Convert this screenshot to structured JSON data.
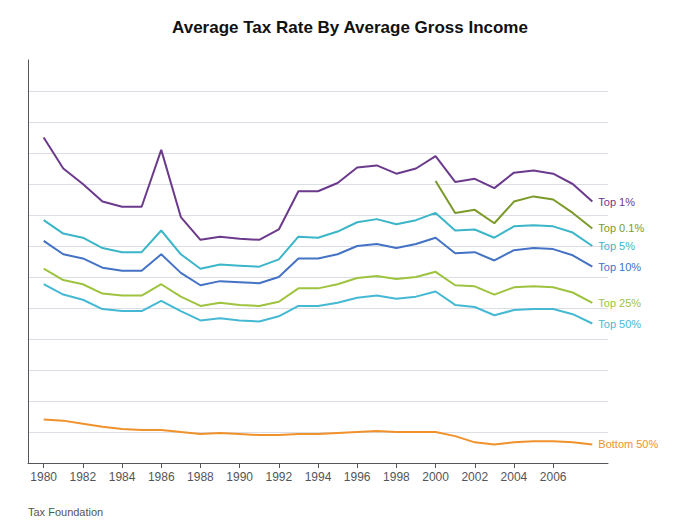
{
  "chart_data": {
    "type": "line",
    "title": "Average Tax Rate By Average Gross Income",
    "annotations": [
      "Tax Foundation"
    ],
    "x": [
      1980,
      1981,
      1982,
      1983,
      1984,
      1985,
      1986,
      1987,
      1988,
      1989,
      1990,
      1991,
      1992,
      1993,
      1994,
      1995,
      1996,
      1997,
      1998,
      1999,
      2000,
      2001,
      2002,
      2003,
      2004,
      2005,
      2006,
      2007,
      2008
    ],
    "series": [
      {
        "name": "Top 1%",
        "color": "#6B3A8C",
        "values": [
          0.345,
          0.315,
          0.3,
          0.283,
          0.278,
          0.278,
          0.333,
          0.268,
          0.246,
          0.249,
          0.247,
          0.246,
          0.256,
          0.293,
          0.293,
          0.301,
          0.316,
          0.318,
          0.31,
          0.315,
          0.327,
          0.302,
          0.305,
          0.296,
          0.311,
          0.313,
          0.31,
          0.3,
          0.283
        ]
      },
      {
        "name": "Top 0.1%",
        "color": "#7B9A2A",
        "values": [
          null,
          null,
          null,
          null,
          null,
          null,
          null,
          null,
          null,
          null,
          null,
          null,
          null,
          null,
          null,
          null,
          null,
          null,
          null,
          null,
          0.303,
          0.272,
          0.275,
          0.262,
          0.283,
          0.288,
          0.285,
          0.272,
          0.257
        ]
      },
      {
        "name": "Top 5%",
        "color": "#3BB5C8",
        "values": [
          0.265,
          0.252,
          0.248,
          0.238,
          0.234,
          0.234,
          0.255,
          0.232,
          0.218,
          0.222,
          0.221,
          0.22,
          0.227,
          0.249,
          0.248,
          0.254,
          0.263,
          0.266,
          0.261,
          0.265,
          0.272,
          0.255,
          0.256,
          0.248,
          0.259,
          0.26,
          0.259,
          0.253,
          0.24
        ]
      },
      {
        "name": "Top 10%",
        "color": "#4472C4",
        "values": [
          0.245,
          0.232,
          0.228,
          0.219,
          0.216,
          0.216,
          0.232,
          0.214,
          0.202,
          0.206,
          0.205,
          0.204,
          0.21,
          0.228,
          0.228,
          0.232,
          0.24,
          0.242,
          0.238,
          0.242,
          0.248,
          0.233,
          0.234,
          0.226,
          0.236,
          0.238,
          0.237,
          0.231,
          0.22
        ]
      },
      {
        "name": "Top 25%",
        "color": "#9DC33F",
        "values": [
          0.218,
          0.207,
          0.203,
          0.194,
          0.192,
          0.192,
          0.203,
          0.191,
          0.182,
          0.185,
          0.183,
          0.182,
          0.186,
          0.199,
          0.199,
          0.203,
          0.209,
          0.211,
          0.208,
          0.21,
          0.215,
          0.202,
          0.201,
          0.193,
          0.2,
          0.201,
          0.2,
          0.195,
          0.185
        ]
      },
      {
        "name": "Top 50%",
        "color": "#45B9D4",
        "values": [
          0.203,
          0.193,
          0.188,
          0.179,
          0.177,
          0.177,
          0.187,
          0.177,
          0.168,
          0.17,
          0.168,
          0.167,
          0.172,
          0.182,
          0.182,
          0.185,
          0.19,
          0.192,
          0.189,
          0.191,
          0.196,
          0.183,
          0.181,
          0.173,
          0.178,
          0.179,
          0.179,
          0.174,
          0.165
        ]
      },
      {
        "name": "Bottom 50%",
        "color": "#F0922B",
        "values": [
          0.072,
          0.071,
          0.068,
          0.065,
          0.063,
          0.062,
          0.062,
          0.06,
          0.058,
          0.059,
          0.058,
          0.057,
          0.057,
          0.058,
          0.058,
          0.059,
          0.06,
          0.061,
          0.06,
          0.06,
          0.06,
          0.056,
          0.05,
          0.048,
          0.05,
          0.051,
          0.051,
          0.05,
          0.048
        ]
      }
    ],
    "xlim": [
      1979.2,
      2008.8
    ],
    "ylim": [
      0.03,
      0.42
    ],
    "xticks": [
      1980,
      1982,
      1984,
      1986,
      1988,
      1990,
      1992,
      1994,
      1996,
      1998,
      2000,
      2002,
      2004,
      2006
    ],
    "yticks": [
      0.06,
      0.09,
      0.12,
      0.15,
      0.18,
      0.21,
      0.24,
      0.27,
      0.3,
      0.33,
      0.36,
      0.39
    ],
    "grid": true,
    "tick_labels": "x"
  }
}
